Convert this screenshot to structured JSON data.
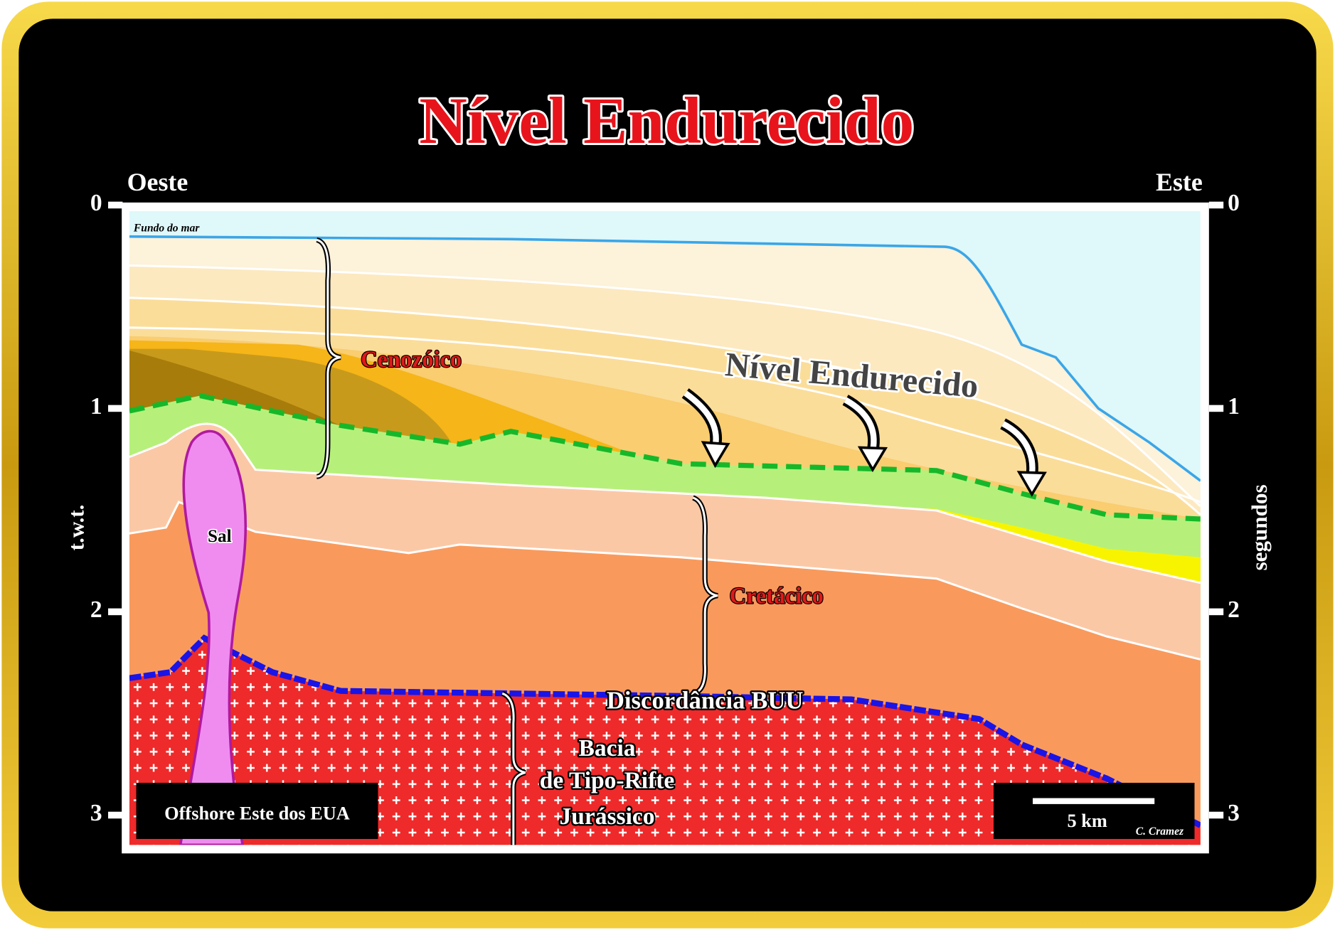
{
  "title": "Nível Endurecido",
  "west": "Oeste",
  "east": "Este",
  "left_axis": {
    "label": "t.w.t.",
    "ticks": [
      0,
      1,
      2,
      3
    ]
  },
  "right_axis": {
    "label": "segundos",
    "ticks": [
      0,
      1,
      2,
      3
    ]
  },
  "labels": {
    "seafloor": "Fundo do mar",
    "cenozoic": "Cenozóico",
    "hardground": "Nível Endurecido",
    "cretaceous": "Cretácico",
    "salt": "Sal",
    "unconformity": "Discordância BUU",
    "rift_basin": [
      "Bacia",
      "de Tipo-Rifte",
      "Jurássico"
    ]
  },
  "location": "Offshore Este dos EUA",
  "scale_bar": "5 km",
  "author": "C. Cramez"
}
